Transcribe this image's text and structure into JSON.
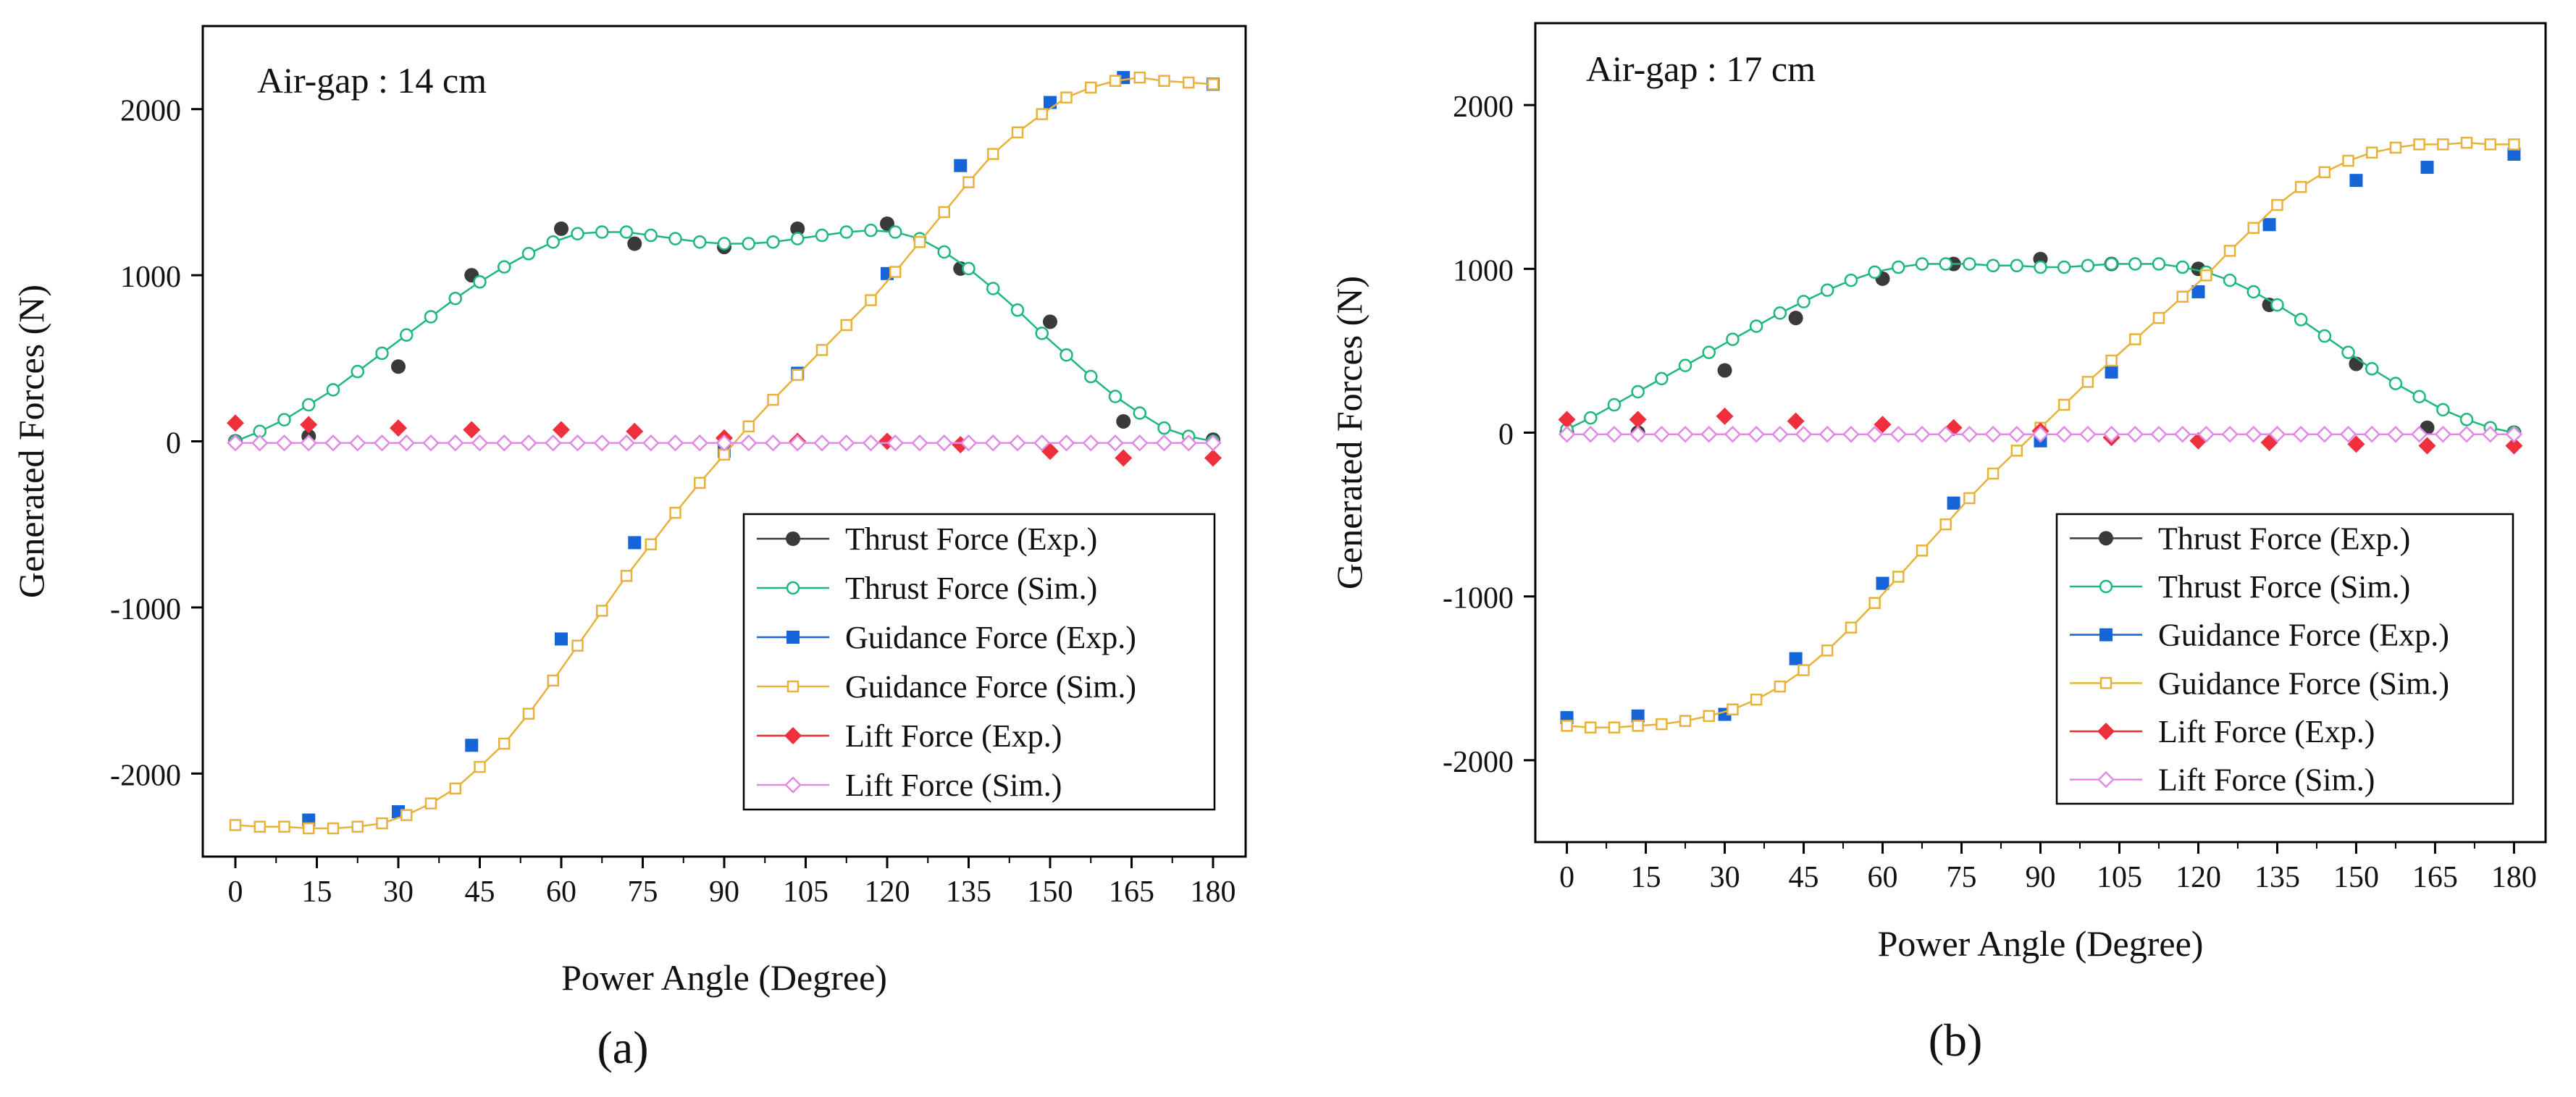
{
  "colors": {
    "thrust_exp": "#3a3a3a",
    "thrust_sim": "#1db87a",
    "guidance_exp": "#1565d8",
    "guidance_sim": "#e8b23a",
    "lift_exp": "#ef2f3c",
    "lift_sim": "#e08ae6"
  },
  "chart_data": [
    {
      "id": "a",
      "type": "line",
      "panel_label": "(a)",
      "annotation": "Air-gap : 14 cm",
      "xlabel": "Power Angle (Degree)",
      "ylabel": "Generated Forces (N)",
      "xlim": [
        -6,
        186
      ],
      "ylim": [
        -2500,
        2500
      ],
      "xticks": [
        0,
        15,
        30,
        45,
        60,
        75,
        90,
        105,
        120,
        135,
        150,
        165,
        180
      ],
      "yticks": [
        -2000,
        -1000,
        0,
        1000,
        2000
      ],
      "grid": false,
      "legend_position": "lower-right",
      "sim_x": [
        0,
        4.5,
        9,
        13.5,
        18,
        22.5,
        27,
        31.5,
        36,
        40.5,
        45,
        49.5,
        54,
        58.5,
        63,
        67.5,
        72,
        76.5,
        81,
        85.5,
        90,
        94.5,
        99,
        103.5,
        108,
        112.5,
        117,
        121.5,
        126,
        130.5,
        135,
        139.5,
        144,
        148.5,
        153,
        157.5,
        162,
        166.5,
        171,
        175.5,
        180
      ],
      "exp_x": [
        0,
        13.5,
        30,
        43.5,
        60,
        73.5,
        90,
        103.5,
        120,
        133.5,
        150,
        163.5,
        180
      ],
      "series": [
        {
          "name": "Thrust Force (Exp.)",
          "kind": "exp",
          "marker": "circle",
          "color_key": "thrust_exp",
          "values": [
            0,
            30,
            450,
            1000,
            1280,
            1190,
            1170,
            1280,
            1310,
            1040,
            720,
            120,
            10
          ]
        },
        {
          "name": "Thrust Force (Sim.)",
          "kind": "sim",
          "marker": "open-circle",
          "color_key": "thrust_sim",
          "values": [
            0,
            60,
            130,
            220,
            310,
            420,
            530,
            640,
            750,
            860,
            960,
            1050,
            1130,
            1200,
            1250,
            1260,
            1260,
            1240,
            1220,
            1200,
            1190,
            1190,
            1200,
            1220,
            1240,
            1260,
            1270,
            1260,
            1220,
            1140,
            1040,
            920,
            790,
            650,
            520,
            390,
            270,
            170,
            80,
            30,
            0
          ]
        },
        {
          "name": "Guidance Force (Exp.)",
          "kind": "exp",
          "marker": "square",
          "color_key": "guidance_exp",
          "values": [
            null,
            -2280,
            -2230,
            -1830,
            -1190,
            -610,
            -60,
            410,
            1010,
            1660,
            2040,
            2190,
            2150
          ]
        },
        {
          "name": "Guidance Force (Sim.)",
          "kind": "sim",
          "marker": "open-square",
          "color_key": "guidance_sim",
          "values": [
            -2310,
            -2320,
            -2320,
            -2330,
            -2330,
            -2320,
            -2300,
            -2250,
            -2180,
            -2090,
            -1960,
            -1820,
            -1640,
            -1440,
            -1230,
            -1020,
            -810,
            -620,
            -430,
            -250,
            -80,
            90,
            250,
            400,
            550,
            700,
            850,
            1020,
            1200,
            1380,
            1560,
            1730,
            1860,
            1970,
            2070,
            2130,
            2170,
            2190,
            2170,
            2160,
            2150
          ]
        },
        {
          "name": "Lift Force (Exp.)",
          "kind": "exp",
          "marker": "diamond",
          "color_key": "lift_exp",
          "values": [
            110,
            100,
            80,
            70,
            70,
            60,
            20,
            0,
            0,
            -20,
            -60,
            -100,
            -100
          ]
        },
        {
          "name": "Lift Force (Sim.)",
          "kind": "sim",
          "marker": "open-diamond",
          "color_key": "lift_sim",
          "values": [
            -10,
            -10,
            -10,
            -10,
            -10,
            -10,
            -10,
            -10,
            -10,
            -10,
            -10,
            -10,
            -10,
            -10,
            -10,
            -10,
            -10,
            -10,
            -10,
            -10,
            -10,
            -10,
            -10,
            -10,
            -10,
            -10,
            -10,
            -10,
            -10,
            -10,
            -10,
            -10,
            -10,
            -10,
            -10,
            -10,
            -10,
            -10,
            -10,
            -10,
            -10
          ]
        }
      ]
    },
    {
      "id": "b",
      "type": "line",
      "panel_label": "(b)",
      "annotation": "Air-gap : 17 cm",
      "xlabel": "Power Angle (Degree)",
      "ylabel": "Generated Forces (N)",
      "xlim": [
        -6,
        186
      ],
      "ylim": [
        -2500,
        2500
      ],
      "xticks": [
        0,
        15,
        30,
        45,
        60,
        75,
        90,
        105,
        120,
        135,
        150,
        165,
        180
      ],
      "yticks": [
        -2000,
        -1000,
        0,
        1000,
        2000
      ],
      "grid": false,
      "legend_position": "lower-right",
      "sim_x": [
        0,
        4.5,
        9,
        13.5,
        18,
        22.5,
        27,
        31.5,
        36,
        40.5,
        45,
        49.5,
        54,
        58.5,
        63,
        67.5,
        72,
        76.5,
        81,
        85.5,
        90,
        94.5,
        99,
        103.5,
        108,
        112.5,
        117,
        121.5,
        126,
        130.5,
        135,
        139.5,
        144,
        148.5,
        153,
        157.5,
        162,
        166.5,
        171,
        175.5,
        180
      ],
      "exp_x": [
        0,
        13.5,
        30,
        43.5,
        60,
        73.5,
        90,
        103.5,
        120,
        133.5,
        150,
        163.5,
        180
      ],
      "series": [
        {
          "name": "Thrust Force (Exp.)",
          "kind": "exp",
          "marker": "circle",
          "color_key": "thrust_exp",
          "values": [
            0,
            0,
            380,
            700,
            940,
            1030,
            1060,
            1030,
            1000,
            780,
            420,
            30,
            0
          ]
        },
        {
          "name": "Thrust Force (Sim.)",
          "kind": "sim",
          "marker": "open-circle",
          "color_key": "thrust_sim",
          "values": [
            20,
            90,
            170,
            250,
            330,
            410,
            490,
            570,
            650,
            730,
            800,
            870,
            930,
            980,
            1010,
            1030,
            1030,
            1030,
            1020,
            1020,
            1010,
            1010,
            1020,
            1030,
            1030,
            1030,
            1010,
            980,
            930,
            860,
            780,
            690,
            590,
            490,
            390,
            300,
            220,
            140,
            80,
            30,
            0
          ]
        },
        {
          "name": "Guidance Force (Exp.)",
          "kind": "exp",
          "marker": "square",
          "color_key": "guidance_exp",
          "values": [
            -1740,
            -1730,
            -1720,
            -1380,
            -920,
            -430,
            -50,
            370,
            860,
            1270,
            1540,
            1620,
            1700
          ]
        },
        {
          "name": "Guidance Force (Sim.)",
          "kind": "sim",
          "marker": "open-square",
          "color_key": "guidance_sim",
          "values": [
            -1790,
            -1800,
            -1800,
            -1790,
            -1780,
            -1760,
            -1730,
            -1690,
            -1630,
            -1550,
            -1450,
            -1330,
            -1190,
            -1040,
            -880,
            -720,
            -560,
            -400,
            -250,
            -110,
            30,
            170,
            310,
            440,
            570,
            700,
            830,
            960,
            1110,
            1250,
            1390,
            1500,
            1590,
            1660,
            1710,
            1740,
            1760,
            1760,
            1770,
            1760,
            1760
          ]
        },
        {
          "name": "Lift Force (Exp.)",
          "kind": "exp",
          "marker": "diamond",
          "color_key": "lift_exp",
          "values": [
            80,
            80,
            100,
            70,
            50,
            30,
            10,
            -30,
            -50,
            -60,
            -70,
            -80,
            -80
          ]
        },
        {
          "name": "Lift Force (Sim.)",
          "kind": "sim",
          "marker": "open-diamond",
          "color_key": "lift_sim",
          "values": [
            -10,
            -10,
            -10,
            -10,
            -10,
            -10,
            -10,
            -10,
            -10,
            -10,
            -10,
            -10,
            -10,
            -10,
            -10,
            -10,
            -10,
            -10,
            -10,
            -10,
            -10,
            -10,
            -10,
            -10,
            -10,
            -10,
            -10,
            -10,
            -10,
            -10,
            -10,
            -10,
            -10,
            -10,
            -10,
            -10,
            -10,
            -10,
            -10,
            -10,
            -10
          ]
        }
      ]
    }
  ]
}
